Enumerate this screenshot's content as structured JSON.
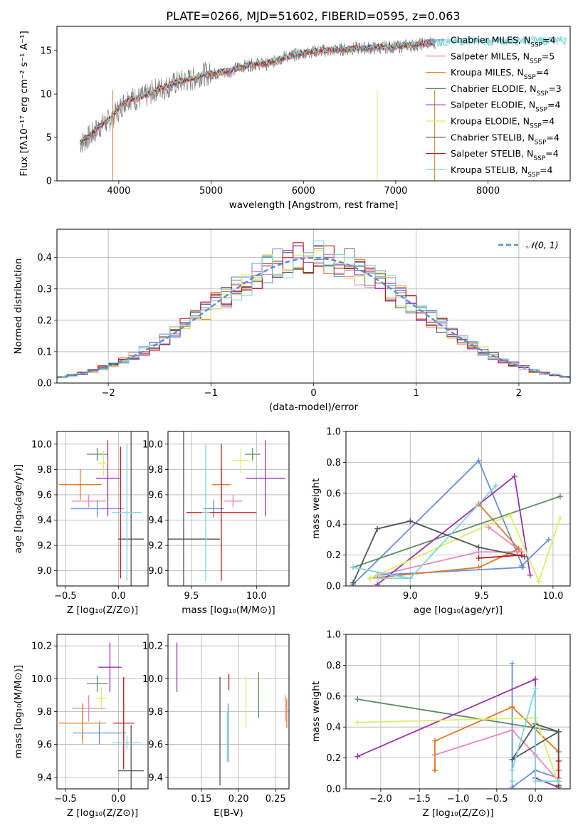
{
  "title": "PLATE=0266, MJD=51602, FIBERID=0595, z=0.063",
  "series_colors": [
    "#6a8fd9",
    "#e887c0",
    "#e07b28",
    "#5e8a68",
    "#9b30b0",
    "#d9ef6a",
    "#555555",
    "#c0181c",
    "#7fd6dc"
  ],
  "legend": [
    {
      "name": "Chabrier MILES",
      "n": "4"
    },
    {
      "name": "Salpeter MILES",
      "n": "5"
    },
    {
      "name": "Kroupa MILES",
      "n": "4"
    },
    {
      "name": "Chabrier ELODIE",
      "n": "3"
    },
    {
      "name": "Salpeter ELODIE",
      "n": "4"
    },
    {
      "name": "Kroupa ELODIE",
      "n": "4"
    },
    {
      "name": "Chabrier STELIB",
      "n": "4"
    },
    {
      "name": "Salpeter STELIB",
      "n": "4"
    },
    {
      "name": "Kroupa STELIB",
      "n": "4"
    }
  ],
  "legend_nssp_label": "N",
  "legend_nssp_sub": "SSP",
  "chart_data": [
    {
      "type": "line",
      "id": "spectrum",
      "xlabel": "wavelength [Angstrom, rest frame]",
      "ylabel": "Flux [fλ10⁻¹⁷ erg cm⁻² s⁻¹ A⁻¹]",
      "xlim": [
        3330,
        8890
      ],
      "ylim": [
        0,
        17.8
      ],
      "xticks": [
        4000,
        5000,
        6000,
        7000,
        8000
      ],
      "yticks": [
        0,
        5,
        10,
        15
      ],
      "series": [
        {
          "role": "data",
          "color": "#808080",
          "x": [
            3580,
            3700,
            3800,
            3900,
            4000,
            4100,
            4200,
            4300,
            4400,
            4500,
            4600,
            4700,
            4800,
            4900,
            5000,
            5100,
            5200,
            5300,
            5400,
            5500,
            5600,
            5700,
            5800,
            5900,
            6000,
            6100,
            6200,
            6300,
            6400,
            6500,
            6600,
            6700,
            6800,
            6900,
            7000,
            7100,
            7200,
            7300,
            7400,
            7600,
            7800,
            8000,
            8200,
            8400,
            8600,
            8800
          ],
          "y": [
            4.3,
            5.2,
            6.3,
            7.0,
            8.2,
            9.6,
            9.4,
            9.8,
            10.5,
            10.7,
            11.2,
            11.5,
            11.7,
            12.3,
            12.3,
            12.4,
            12.6,
            13.1,
            13.3,
            13.5,
            13.4,
            13.8,
            14.3,
            14.5,
            14.7,
            14.9,
            15.0,
            15.0,
            15.1,
            15.2,
            15.3,
            15.3,
            15.3,
            15.4,
            15.4,
            15.6,
            15.6,
            15.8,
            15.9,
            16.0,
            16.1,
            16.0,
            16.1,
            16.2,
            16.1,
            16.2
          ]
        },
        {
          "role": "model",
          "color": "#7fd6dc",
          "x": [
            3580,
            3700,
            3800,
            3900,
            4000,
            4100,
            4200,
            4300,
            4400,
            4500,
            4600,
            4700,
            4800,
            4900,
            5000,
            5100,
            5200,
            5300,
            5400,
            5500,
            5600,
            5700,
            5800,
            5900,
            6000,
            6100,
            6200,
            6300,
            6400,
            6500,
            6600,
            6700,
            6800,
            6900,
            7000,
            7100,
            7200,
            7300,
            7400,
            7600,
            7800,
            8000,
            8200,
            8400,
            8600,
            8800
          ],
          "y": [
            4.4,
            5.4,
            6.4,
            7.1,
            8.4,
            9.4,
            9.5,
            9.9,
            10.4,
            10.8,
            11.2,
            11.6,
            11.8,
            12.2,
            12.3,
            12.5,
            12.7,
            13.0,
            13.3,
            13.5,
            13.5,
            13.9,
            14.2,
            14.5,
            14.7,
            14.9,
            15.0,
            15.1,
            15.1,
            15.2,
            15.3,
            15.3,
            15.4,
            15.4,
            15.5,
            15.6,
            15.7,
            15.8,
            15.9,
            16.0,
            16.1,
            16.1,
            16.1,
            16.2,
            16.2,
            16.2
          ]
        }
      ]
    },
    {
      "type": "bar",
      "id": "residual_histogram",
      "xlabel": "(data-model)/error",
      "ylabel": "Normed distribution",
      "xlim": [
        -2.5,
        2.5
      ],
      "ylim": [
        0,
        0.49
      ],
      "xticks": [
        -2,
        -1,
        0,
        1,
        2
      ],
      "yticks": [
        0.0,
        0.1,
        0.2,
        0.3,
        0.4
      ],
      "curve_label": "𝒩(0, 1)",
      "bins": 50
    },
    {
      "type": "scatter",
      "id": "age_vs_Z",
      "xlabel": "Z [log₁₀(Z/Z⊙)]",
      "ylabel": "age  [log₁₀(age/yr)]",
      "xlim": [
        -0.58,
        0.28
      ],
      "ylim": [
        8.88,
        10.1
      ],
      "xticks": [
        -0.5,
        0.0
      ],
      "yticks": [
        9.0,
        9.2,
        9.4,
        9.6,
        9.8,
        10.0
      ],
      "points": [
        {
          "x": -0.2,
          "y": 9.49,
          "xerr": 0.25,
          "yerr": 0.07
        },
        {
          "x": -0.28,
          "y": 9.55,
          "xerr": 0.16,
          "yerr": 0.05
        },
        {
          "x": -0.36,
          "y": 9.68,
          "xerr": 0.2,
          "yerr": 0.12
        },
        {
          "x": -0.2,
          "y": 9.92,
          "xerr": 0.1,
          "yerr": 0.05
        },
        {
          "x": -0.1,
          "y": 9.73,
          "xerr": 0.11,
          "yerr": 0.3
        },
        {
          "x": -0.14,
          "y": 9.85,
          "xerr": 0.05,
          "yerr": 0.1
        },
        {
          "x": 0.12,
          "y": 9.25,
          "xerr": 0.12,
          "yerr": 0.85
        },
        {
          "x": 0.02,
          "y": 9.46,
          "xerr": 0.01,
          "yerr": 0.52
        },
        {
          "x": 0.08,
          "y": 9.46,
          "xerr": 0.14,
          "yerr": 0.54
        }
      ]
    },
    {
      "type": "scatter",
      "id": "age_vs_mass",
      "xlabel": "mass [log₁₀(M/M⊙)]",
      "ylabel": "",
      "xlim": [
        9.32,
        10.25
      ],
      "ylim": [
        8.88,
        10.1
      ],
      "xticks": [
        9.5,
        10.0
      ],
      "yticks": [
        9.0,
        9.2,
        9.4,
        9.6,
        9.8,
        10.0
      ],
      "points": [
        {
          "x": 9.67,
          "y": 9.49,
          "xerr": 0.08,
          "yerr": 0.07
        },
        {
          "x": 9.82,
          "y": 9.55,
          "xerr": 0.07,
          "yerr": 0.05
        },
        {
          "x": 9.73,
          "y": 9.68,
          "xerr": 0.07,
          "yerr": 0.12
        },
        {
          "x": 9.97,
          "y": 9.92,
          "xerr": 0.06,
          "yerr": 0.05
        },
        {
          "x": 10.07,
          "y": 9.73,
          "xerr": 0.15,
          "yerr": 0.3
        },
        {
          "x": 9.88,
          "y": 9.87,
          "xerr": 0.07,
          "yerr": 0.1
        },
        {
          "x": 9.44,
          "y": 9.25,
          "xerr": 0.28,
          "yerr": 0.85
        },
        {
          "x": 9.73,
          "y": 9.46,
          "xerr": 0.27,
          "yerr": 0.54
        },
        {
          "x": 9.61,
          "y": 9.46,
          "xerr": 0.03,
          "yerr": 0.54
        }
      ]
    },
    {
      "type": "line",
      "id": "mass_weight_vs_age",
      "xlabel": "age  [log₁₀(age/yr)]",
      "ylabel": "mass weight",
      "xlim": [
        8.55,
        10.12
      ],
      "ylim": [
        0,
        1.0
      ],
      "xticks": [
        9.0,
        9.5,
        10.0
      ],
      "yticks": [
        0.0,
        0.2,
        0.4,
        0.6,
        0.8,
        1.0
      ],
      "series": [
        {
          "x": [
            8.6,
            9.48,
            9.79,
            8.77
          ],
          "y": [
            0.01,
            0.81,
            0.12,
            0.07
          ]
        },
        {
          "x": [
            8.78,
            9.48,
            9.78,
            9.55
          ],
          "y": [
            0.07,
            0.22,
            0.22,
            0.38
          ]
        },
        {
          "x": [
            8.72,
            9.48,
            9.76,
            9.48
          ],
          "y": [
            0.05,
            0.12,
            0.24,
            0.53
          ]
        },
        {
          "x": [
            8.6,
            10.05
          ],
          "y": [
            0.12,
            0.58
          ]
        },
        {
          "x": [
            8.77,
            9.73,
            9.84
          ],
          "y": [
            0.01,
            0.71,
            0.07
          ]
        },
        {
          "x": [
            8.72,
            9.7,
            9.9,
            10.05
          ],
          "y": [
            0.05,
            0.46,
            0.03,
            0.44
          ]
        },
        {
          "x": [
            8.6,
            8.77,
            9.0,
            9.48,
            9.8
          ],
          "y": [
            0.02,
            0.37,
            0.42,
            0.25,
            0.19
          ]
        },
        {
          "x": [
            9.48,
            9.78
          ],
          "y": [
            0.18,
            0.2
          ]
        },
        {
          "x": [
            8.6,
            9.0,
            9.6,
            9.0,
            8.78
          ],
          "y": [
            0.12,
            0.05,
            0.65,
            0.05,
            0.05
          ]
        },
        {
          "x": [
            9.78,
            9.97
          ],
          "y": [
            0.13,
            0.3
          ]
        }
      ]
    },
    {
      "type": "scatter",
      "id": "mass_vs_Z",
      "xlabel": "Z [log₁₀(Z/Z⊙)]",
      "ylabel": "mass [log₁₀(M/M⊙)]",
      "xlim": [
        -0.58,
        0.28
      ],
      "ylim": [
        9.33,
        10.27
      ],
      "xticks": [
        -0.5,
        0.0
      ],
      "yticks": [
        9.4,
        9.6,
        9.8,
        10.0,
        10.2
      ],
      "points": [
        {
          "x": -0.18,
          "y": 9.67,
          "xerr": 0.25,
          "yerr": 0.07
        },
        {
          "x": -0.28,
          "y": 9.82,
          "xerr": 0.16,
          "yerr": 0.08
        },
        {
          "x": -0.34,
          "y": 9.73,
          "xerr": 0.22,
          "yerr": 0.12
        },
        {
          "x": -0.2,
          "y": 9.97,
          "xerr": 0.1,
          "yerr": 0.05
        },
        {
          "x": -0.08,
          "y": 10.07,
          "xerr": 0.11,
          "yerr": 0.15
        },
        {
          "x": -0.16,
          "y": 9.88,
          "xerr": 0.05,
          "yerr": 0.07
        },
        {
          "x": 0.12,
          "y": 9.44,
          "xerr": 0.12,
          "yerr": 0.28
        },
        {
          "x": 0.05,
          "y": 9.73,
          "xerr": 0.1,
          "yerr": 0.28
        },
        {
          "x": 0.08,
          "y": 9.61,
          "xerr": 0.14,
          "yerr": 0.04
        }
      ]
    },
    {
      "type": "scatter",
      "id": "mass_vs_EBV",
      "xlabel": "E(B-V)",
      "ylabel": "",
      "xlim": [
        0.105,
        0.268
      ],
      "ylim": [
        9.33,
        10.27
      ],
      "xticks": [
        0.15,
        0.2,
        0.25
      ],
      "yticks": [
        9.4,
        9.6,
        9.8,
        10.0,
        10.2
      ],
      "points": [
        {
          "x": 0.186,
          "y": 9.67,
          "yerr": 0.18
        },
        {
          "x": 0.263,
          "y": 9.82,
          "yerr": 0.08
        },
        {
          "x": 0.265,
          "y": 9.79,
          "yerr": 0.09
        },
        {
          "x": 0.227,
          "y": 9.9,
          "yerr": 0.14
        },
        {
          "x": 0.117,
          "y": 10.07,
          "yerr": 0.15
        },
        {
          "x": 0.21,
          "y": 9.86,
          "yerr": 0.16
        },
        {
          "x": 0.175,
          "y": 9.68,
          "yerr": 0.33
        },
        {
          "x": 0.187,
          "y": 9.98,
          "yerr": 0.05
        },
        {
          "x": 0.185,
          "y": 9.65,
          "yerr": 0.15
        }
      ]
    },
    {
      "type": "line",
      "id": "mass_weight_vs_Z",
      "xlabel": "Z [log₁₀(Z/Z⊙)]",
      "ylabel": "mass weight",
      "xlim": [
        -2.45,
        0.45
      ],
      "ylim": [
        0,
        1.0
      ],
      "xticks": [
        -2.0,
        -1.5,
        -1.0,
        -0.5,
        0.0
      ],
      "yticks": [
        0.0,
        0.2,
        0.4,
        0.6,
        0.8,
        1.0
      ],
      "series": [
        {
          "x": [
            -0.3,
            -0.3,
            0.0,
            0.3
          ],
          "y": [
            0.81,
            0.01,
            0.12,
            0.07
          ]
        },
        {
          "x": [
            -1.3,
            -1.3,
            -0.3,
            0.0,
            0.3
          ],
          "y": [
            0.12,
            0.22,
            0.38,
            0.22,
            0.05
          ]
        },
        {
          "x": [
            -1.3,
            -1.3,
            -0.3,
            0.3,
            0.3
          ],
          "y": [
            0.12,
            0.31,
            0.53,
            0.24,
            0.05
          ]
        },
        {
          "x": [
            -2.3,
            0.3,
            0.3
          ],
          "y": [
            0.58,
            0.37,
            0.12
          ]
        },
        {
          "x": [
            -2.3,
            0.0,
            0.0,
            0.3
          ],
          "y": [
            0.21,
            0.71,
            0.07,
            0.01
          ]
        },
        {
          "x": [
            -2.3,
            0.0,
            0.3,
            0.3
          ],
          "y": [
            0.43,
            0.46,
            0.03,
            0.05
          ]
        },
        {
          "x": [
            0.3,
            0.0,
            -0.3,
            0.3,
            0.3
          ],
          "y": [
            0.37,
            0.42,
            0.19,
            0.37,
            0.02
          ]
        },
        {
          "x": [
            0.3,
            0.3
          ],
          "y": [
            0.18,
            0.05
          ]
        },
        {
          "x": [
            -0.3,
            -0.3,
            0.0,
            0.0,
            0.3
          ],
          "y": [
            0.05,
            0.12,
            0.65,
            0.05,
            0.05
          ]
        }
      ]
    }
  ]
}
